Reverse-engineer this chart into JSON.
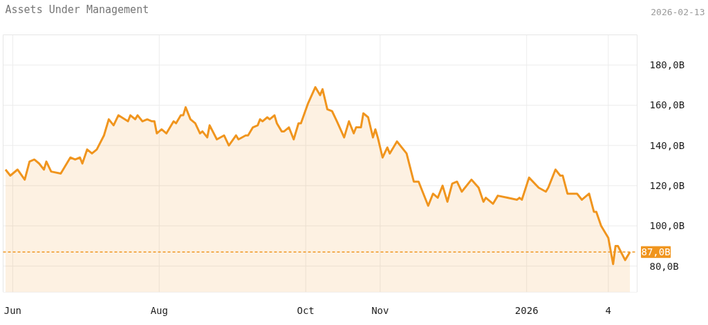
{
  "chart_data": {
    "type": "area",
    "title": "Assets Under Management",
    "annotations": [
      "2026-02-13"
    ],
    "x": [
      "2025-05-29",
      "2025-05-31",
      "2025-06-03",
      "2025-06-06",
      "2025-06-08",
      "2025-06-10",
      "2025-06-12",
      "2025-06-14",
      "2025-06-15",
      "2025-06-17",
      "2025-06-21",
      "2025-06-25",
      "2025-06-27",
      "2025-06-29",
      "2025-06-30",
      "2025-07-02",
      "2025-07-04",
      "2025-07-06",
      "2025-07-09",
      "2025-07-11",
      "2025-07-13",
      "2025-07-15",
      "2025-07-19",
      "2025-07-20",
      "2025-07-22",
      "2025-07-23",
      "2025-07-25",
      "2025-07-27",
      "2025-07-29",
      "2025-07-30",
      "2025-07-31",
      "2025-08-02",
      "2025-08-04",
      "2025-08-07",
      "2025-08-08",
      "2025-08-10",
      "2025-08-11",
      "2025-08-12",
      "2025-08-14",
      "2025-08-16",
      "2025-08-18",
      "2025-08-19",
      "2025-08-21",
      "2025-08-22",
      "2025-08-25",
      "2025-08-28",
      "2025-08-30",
      "2025-09-02",
      "2025-09-03",
      "2025-09-06",
      "2025-09-07",
      "2025-09-09",
      "2025-09-11",
      "2025-09-12",
      "2025-09-13",
      "2025-09-15",
      "2025-09-16",
      "2025-09-18",
      "2025-09-19",
      "2025-09-21",
      "2025-09-22",
      "2025-09-24",
      "2025-09-26",
      "2025-09-28",
      "2025-09-29",
      "2025-10-02",
      "2025-10-05",
      "2025-10-07",
      "2025-10-08",
      "2025-10-10",
      "2025-10-12",
      "2025-10-14",
      "2025-10-17",
      "2025-10-19",
      "2025-10-21",
      "2025-10-22",
      "2025-10-24",
      "2025-10-25",
      "2025-10-27",
      "2025-10-29",
      "2025-10-30",
      "2025-10-31",
      "2025-11-02",
      "2025-11-04",
      "2025-11-05",
      "2025-11-08",
      "2025-11-12",
      "2025-11-15",
      "2025-11-17",
      "2025-11-21",
      "2025-11-23",
      "2025-11-25",
      "2025-11-27",
      "2025-11-29",
      "2025-12-01",
      "2025-12-03",
      "2025-12-05",
      "2025-12-09",
      "2025-12-12",
      "2025-12-14",
      "2025-12-15",
      "2025-12-18",
      "2025-12-20",
      "2025-12-24",
      "2025-12-28",
      "2025-12-29",
      "2025-12-30",
      "2026-01-02",
      "2026-01-06",
      "2026-01-09",
      "2026-01-10",
      "2026-01-13",
      "2026-01-15",
      "2026-01-16",
      "2026-01-18",
      "2026-01-22",
      "2026-01-24",
      "2026-01-27",
      "2026-01-29",
      "2026-01-30",
      "2026-02-01",
      "2026-02-04",
      "2026-02-06",
      "2026-02-07",
      "2026-02-08",
      "2026-02-11",
      "2026-02-13"
    ],
    "series": [
      {
        "color": "#f0951e",
        "values": [
          128,
          125,
          128,
          123,
          132,
          133,
          131,
          128,
          132,
          127,
          126,
          134,
          133,
          134,
          131,
          138,
          136,
          138,
          145,
          153,
          150,
          155,
          152,
          155,
          153,
          155,
          152,
          153,
          152,
          152,
          146,
          148,
          146,
          152,
          151,
          155,
          155,
          159,
          153,
          151,
          146,
          147,
          144,
          150,
          143,
          145,
          140,
          145,
          143,
          145,
          145,
          149,
          150,
          153,
          152,
          154,
          153,
          155,
          151,
          147,
          147,
          149,
          143,
          151,
          151,
          161,
          169,
          165,
          168,
          158,
          157,
          152,
          144,
          152,
          146,
          149,
          149,
          156,
          154,
          144,
          148,
          144,
          134,
          139,
          136,
          142,
          136,
          122,
          122,
          110,
          116,
          114,
          120,
          112,
          121,
          122,
          117,
          123,
          119,
          112,
          114,
          111,
          115,
          114,
          113,
          114,
          113,
          124,
          119,
          117,
          119,
          128,
          125,
          125,
          116,
          116,
          113,
          116,
          107,
          107,
          100,
          94,
          81,
          90,
          90,
          83,
          87
        ]
      }
    ],
    "xlim": [
      "2025-05-28",
      "2026-02-16"
    ],
    "xticks": [
      {
        "value": "2025-06-01",
        "label": "Jun"
      },
      {
        "value": "2025-08-01",
        "label": "Aug"
      },
      {
        "value": "2025-10-01",
        "label": "Oct"
      },
      {
        "value": "2025-11-01",
        "label": "Nov"
      },
      {
        "value": "2026-01-01",
        "label": "2026"
      },
      {
        "value": "2026-02-04",
        "label": "4"
      }
    ],
    "ylim": [
      67,
      195
    ],
    "yticks": [
      {
        "value": 80,
        "label": "80,0B"
      },
      {
        "value": 100,
        "label": "100,0B"
      },
      {
        "value": 120,
        "label": "120,0B"
      },
      {
        "value": 140,
        "label": "140,0B"
      },
      {
        "value": 160,
        "label": "160,0B"
      },
      {
        "value": 180,
        "label": "180,0B"
      }
    ],
    "ref_lines": [
      {
        "axis": "y",
        "value": 87,
        "label": "87,0B",
        "color": "#f0951e",
        "line_style": "dashed"
      }
    ],
    "grid": true
  }
}
